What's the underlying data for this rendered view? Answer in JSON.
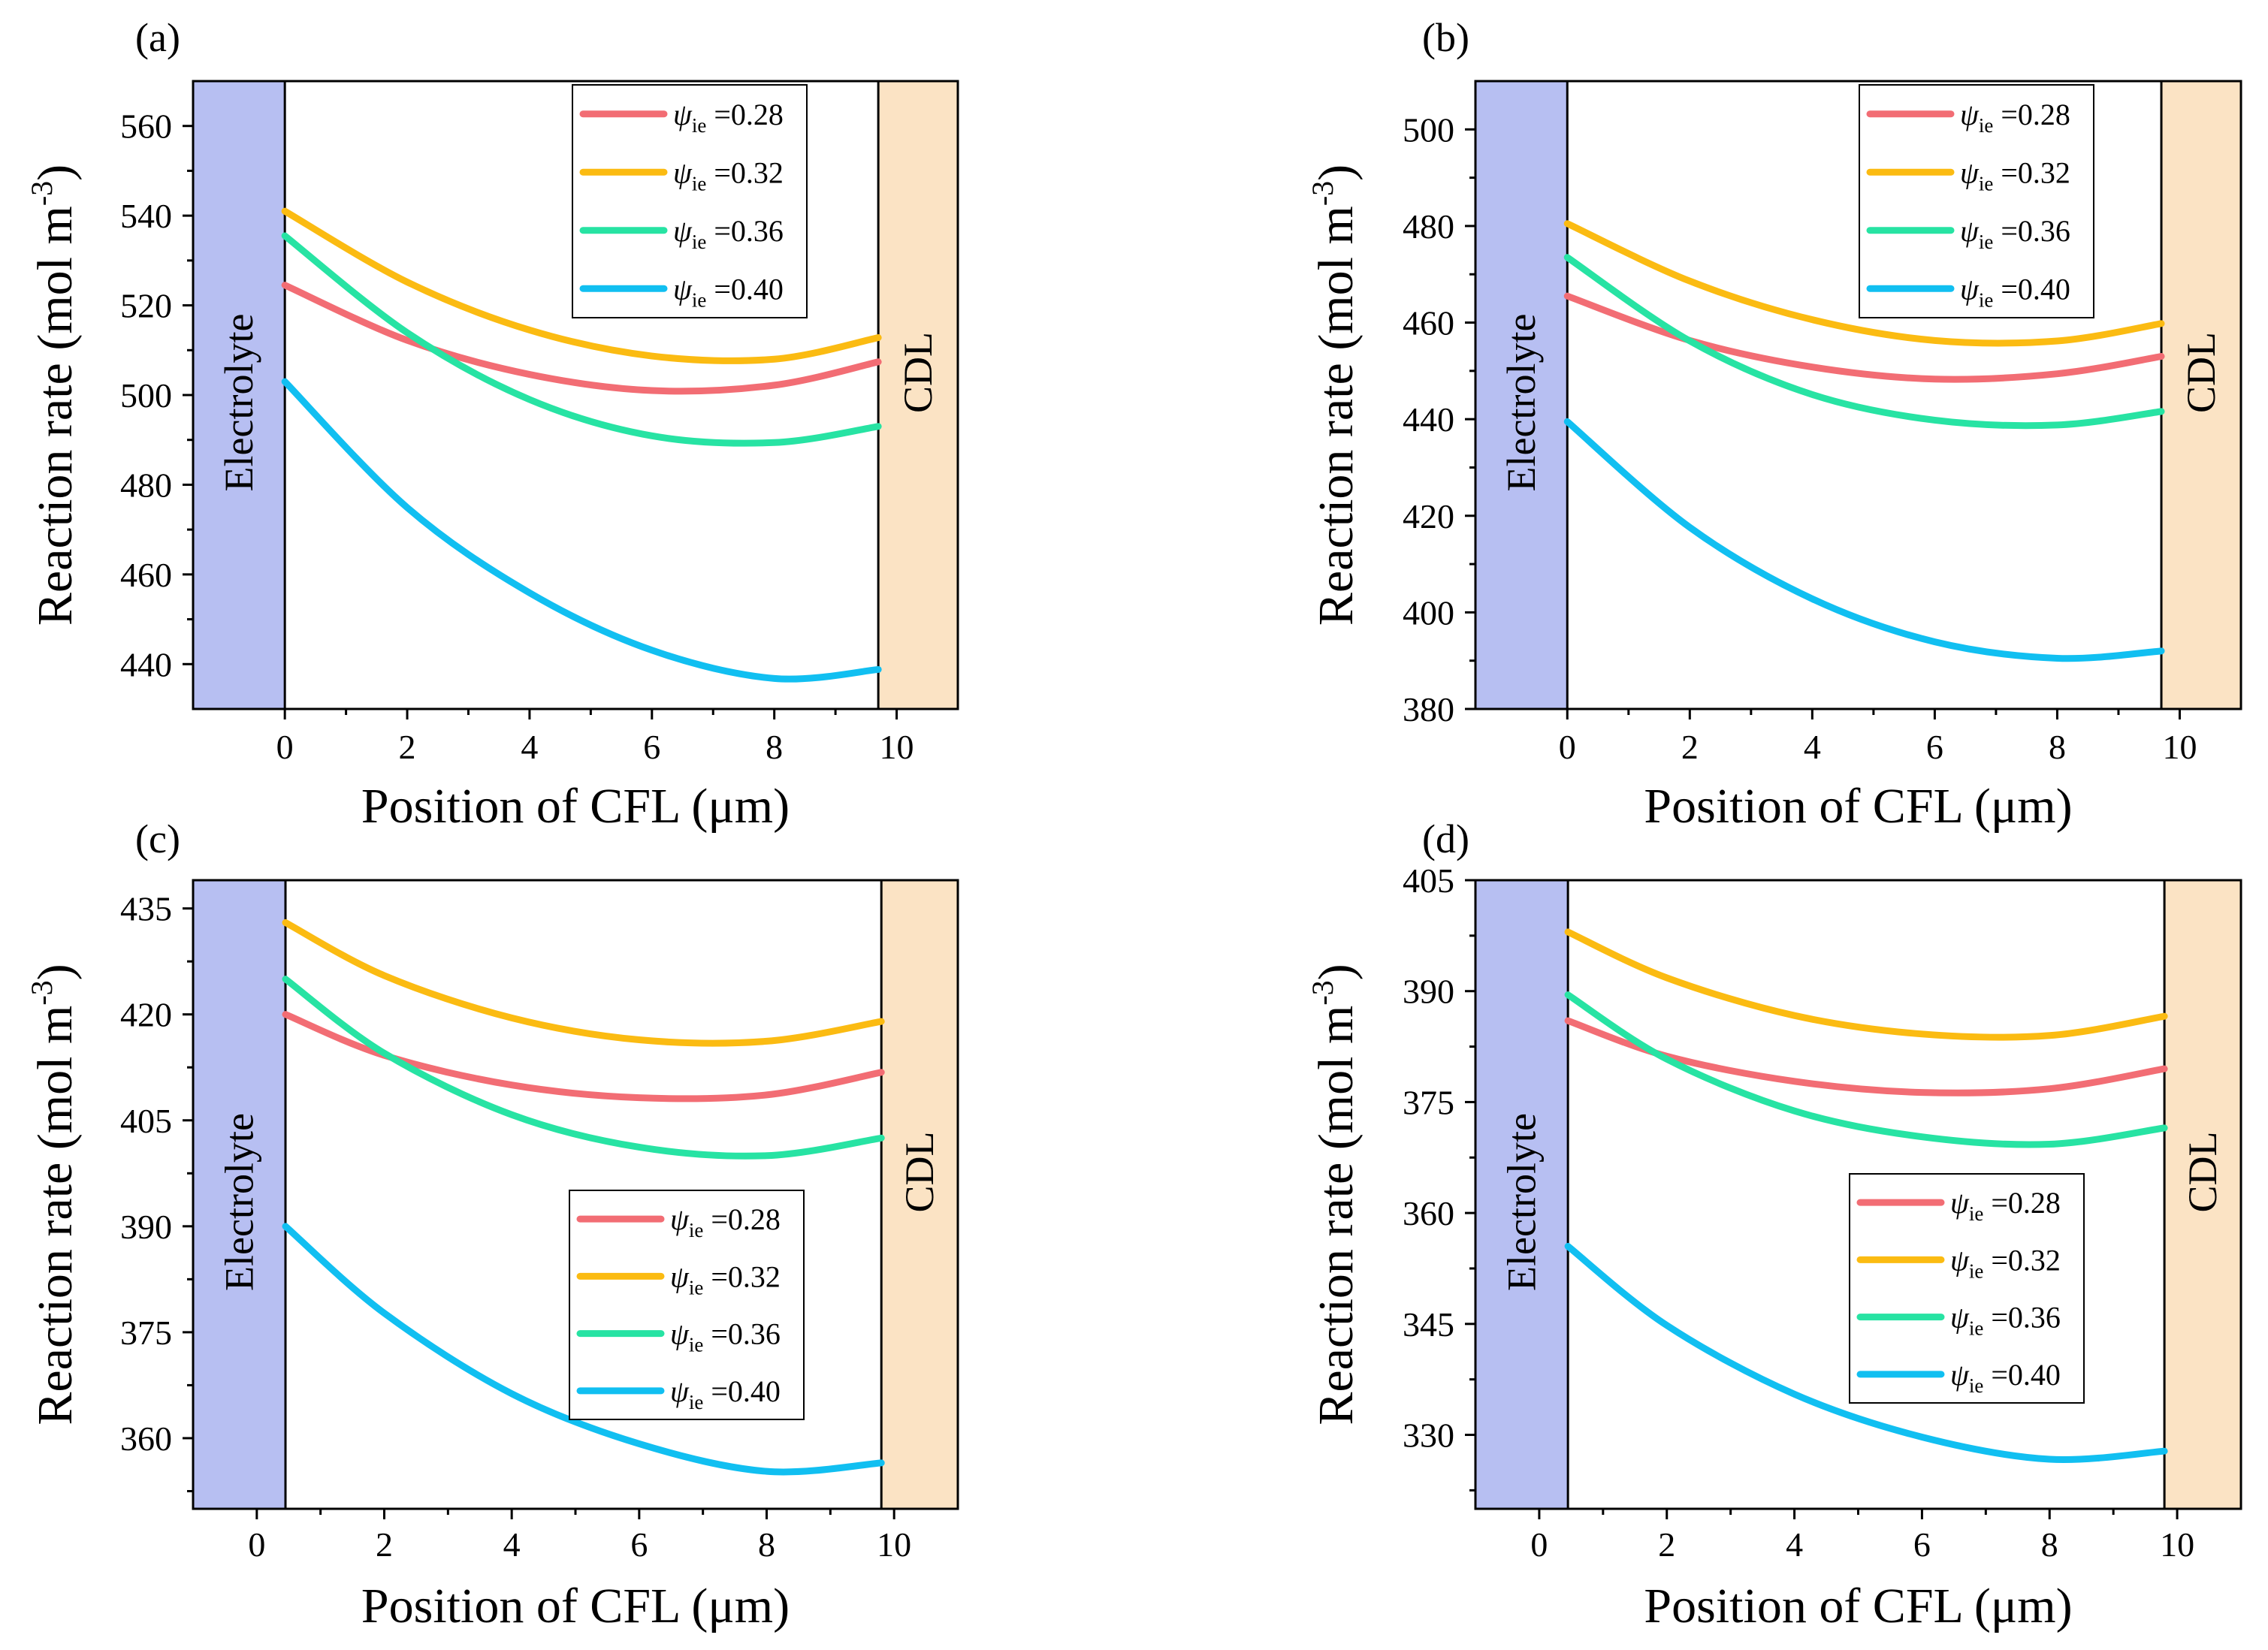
{
  "figure": {
    "xlabel": "Position of CFL (μm)",
    "ylabel_main": "Reaction rate  (mol m",
    "ylabel_sup": "-3",
    "ylabel_end": ")",
    "region_left": "Electrolyte",
    "region_right": "CDL",
    "colors": {
      "electrolyte": "#b7bff2",
      "cdl": "#fbe3c4",
      "series": [
        "#f26d74",
        "#fbbb12",
        "#27e3a3",
        "#11bff1"
      ]
    },
    "legend_symbol": "ψ",
    "legend_sub": "ie"
  },
  "chart_data": [
    {
      "type": "line",
      "panel_label": "(a)",
      "xlim": [
        -1.5,
        11
      ],
      "ylim": [
        430,
        570
      ],
      "electrolyte_range": [
        -1.5,
        0
      ],
      "cdl_range": [
        9.7,
        11
      ],
      "xticks": [
        0,
        2,
        4,
        6,
        8,
        10
      ],
      "yticks": [
        440,
        460,
        480,
        500,
        520,
        540,
        560
      ],
      "legend_position": "top-right",
      "series": [
        {
          "name": "ψie =0.28",
          "label_value": "=0.28",
          "x": [
            0,
            2,
            4,
            6,
            8,
            9.7
          ],
          "y": [
            524.5,
            512.2,
            504.6,
            501.0,
            502.2,
            507.4
          ]
        },
        {
          "name": "ψie =0.32",
          "label_value": "=0.32",
          "x": [
            0,
            2,
            4,
            6,
            8,
            9.7
          ],
          "y": [
            541.0,
            525.2,
            514.5,
            508.7,
            508.0,
            512.8
          ]
        },
        {
          "name": "ψie =0.36",
          "label_value": "=0.36",
          "x": [
            0,
            2,
            4,
            6,
            8,
            9.7
          ],
          "y": [
            535.5,
            513.9,
            499.0,
            490.9,
            489.4,
            493.0
          ]
        },
        {
          "name": "ψie =0.40",
          "label_value": "=0.40",
          "x": [
            0,
            2,
            4,
            6,
            8,
            9.7
          ],
          "y": [
            503.0,
            474.9,
            455.9,
            443.1,
            436.8,
            438.8
          ]
        }
      ]
    },
    {
      "type": "line",
      "panel_label": "(b)",
      "xlim": [
        -1.5,
        11
      ],
      "ylim": [
        380,
        510
      ],
      "electrolyte_range": [
        -1.5,
        0
      ],
      "cdl_range": [
        9.7,
        11
      ],
      "xticks": [
        0,
        2,
        4,
        6,
        8,
        10
      ],
      "yticks": [
        380,
        400,
        420,
        440,
        460,
        480,
        500
      ],
      "legend_position": "top-right",
      "series": [
        {
          "name": "ψie =0.28",
          "label_value": "=0.28",
          "x": [
            0,
            2,
            4,
            6,
            8,
            9.7
          ],
          "y": [
            465.5,
            456.3,
            450.8,
            448.3,
            449.4,
            453.0
          ]
        },
        {
          "name": "ψie =0.32",
          "label_value": "=0.32",
          "x": [
            0,
            2,
            4,
            6,
            8,
            9.7
          ],
          "y": [
            480.5,
            468.6,
            460.6,
            456.3,
            456.2,
            459.8
          ]
        },
        {
          "name": "ψie =0.36",
          "label_value": "=0.36",
          "x": [
            0,
            2,
            4,
            6,
            8,
            9.7
          ],
          "y": [
            473.5,
            456.2,
            445.1,
            439.8,
            438.8,
            441.6
          ]
        },
        {
          "name": "ψie =0.40",
          "label_value": "=0.40",
          "x": [
            0,
            2,
            4,
            6,
            8,
            9.7
          ],
          "y": [
            439.5,
            417.6,
            402.8,
            393.9,
            390.5,
            392.0
          ]
        }
      ]
    },
    {
      "type": "line",
      "panel_label": "(c)",
      "xlim": [
        -1,
        11
      ],
      "ylim": [
        350,
        439
      ],
      "electrolyte_range": [
        -1,
        0.45
      ],
      "cdl_range": [
        9.8,
        11
      ],
      "xticks": [
        0,
        2,
        4,
        6,
        8,
        10
      ],
      "yticks": [
        360,
        375,
        390,
        405,
        420,
        435
      ],
      "legend_position": "lower-right",
      "series": [
        {
          "name": "ψie =0.28",
          "label_value": "=0.28",
          "x": [
            0.45,
            2,
            4,
            6,
            8,
            9.8
          ],
          "y": [
            420.0,
            414.2,
            410.0,
            408.2,
            408.6,
            411.8
          ]
        },
        {
          "name": "ψie =0.32",
          "label_value": "=0.32",
          "x": [
            0.45,
            2,
            4,
            6,
            8,
            9.8
          ],
          "y": [
            433.0,
            425.5,
            419.5,
            416.4,
            416.2,
            419.0
          ]
        },
        {
          "name": "ψie =0.36",
          "label_value": "=0.36",
          "x": [
            0.45,
            2,
            4,
            6,
            8,
            9.8
          ],
          "y": [
            425.0,
            414.5,
            405.8,
            401.2,
            400.0,
            402.5
          ]
        },
        {
          "name": "ψie =0.40",
          "label_value": "=0.40",
          "x": [
            0.45,
            2,
            4,
            6,
            8,
            9.8
          ],
          "y": [
            390.0,
            377.7,
            366.3,
            359.2,
            355.3,
            356.5
          ]
        }
      ]
    },
    {
      "type": "line",
      "panel_label": "(d)",
      "xlim": [
        -1,
        11
      ],
      "ylim": [
        320,
        405
      ],
      "electrolyte_range": [
        -1,
        0.45
      ],
      "cdl_range": [
        9.8,
        11
      ],
      "xticks": [
        0,
        2,
        4,
        6,
        8,
        10
      ],
      "yticks": [
        330,
        345,
        360,
        375,
        390,
        405
      ],
      "legend_position": "lower-right",
      "series": [
        {
          "name": "ψie =0.28",
          "label_value": "=0.28",
          "x": [
            0.45,
            2,
            4,
            6,
            8,
            9.8
          ],
          "y": [
            386.0,
            381.2,
            377.8,
            376.3,
            376.8,
            379.5
          ]
        },
        {
          "name": "ψie =0.32",
          "label_value": "=0.32",
          "x": [
            0.45,
            2,
            4,
            6,
            8,
            9.8
          ],
          "y": [
            398.0,
            391.8,
            386.7,
            384.2,
            384.0,
            386.6
          ]
        },
        {
          "name": "ψie =0.36",
          "label_value": "=0.36",
          "x": [
            0.45,
            2,
            4,
            6,
            8,
            9.8
          ],
          "y": [
            389.5,
            380.8,
            373.8,
            370.3,
            369.3,
            371.5
          ]
        },
        {
          "name": "ψie =0.40",
          "label_value": "=0.40",
          "x": [
            0.45,
            2,
            4,
            6,
            8,
            9.8
          ],
          "y": [
            355.5,
            344.8,
            335.5,
            329.7,
            326.7,
            327.8
          ]
        }
      ]
    }
  ]
}
